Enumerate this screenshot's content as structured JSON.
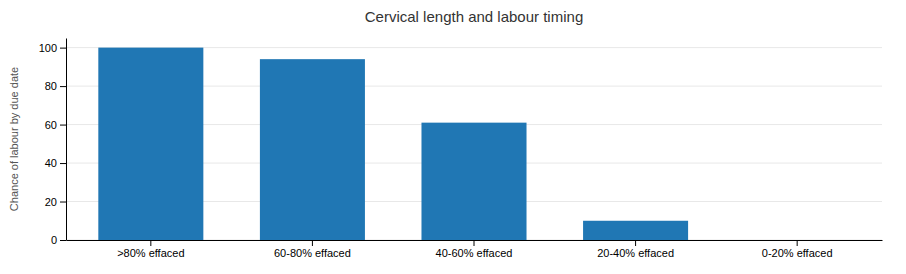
{
  "chart_data": {
    "type": "bar",
    "title": "Cervical length and labour timing",
    "categories": [
      ">80% effaced",
      "60-80% effaced",
      "40-60% effaced",
      "20-40% effaced",
      "0-20% effaced"
    ],
    "values": [
      100,
      94,
      61,
      10,
      0
    ],
    "color": "#2077b4",
    "ylabel": "Chance of labour by due date",
    "ylim": [
      0,
      105
    ],
    "yticks": [
      0,
      20,
      40,
      60,
      80,
      100
    ],
    "grid": true
  }
}
